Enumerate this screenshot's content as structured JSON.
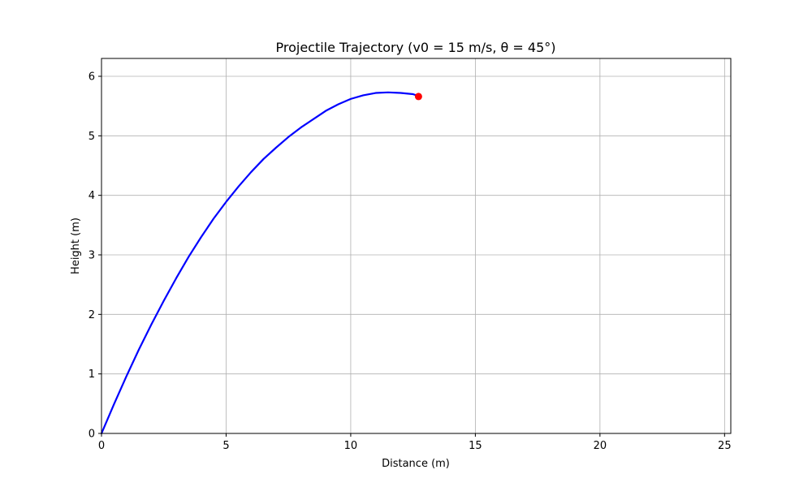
{
  "chart_data": {
    "type": "line",
    "title": "Projectile Trajectory (v0 = 15 m/s, θ = 45°)",
    "xlabel": "Distance (m)",
    "ylabel": "Height (m)",
    "xlim": [
      0,
      25.25
    ],
    "ylim": [
      0,
      6.3
    ],
    "xticks": [
      0,
      5,
      10,
      15,
      20,
      25
    ],
    "yticks": [
      0,
      1,
      2,
      3,
      4,
      5,
      6
    ],
    "grid": true,
    "series": [
      {
        "color": "#0000ff",
        "x": [
          0,
          0.5,
          1,
          1.5,
          2,
          2.5,
          3,
          3.5,
          4,
          4.5,
          5,
          5.5,
          6,
          6.5,
          7,
          7.5,
          8,
          8.5,
          9,
          9.5,
          10,
          10.5,
          11,
          11.5,
          12,
          12.5,
          12.7
        ],
        "y": [
          0,
          0.49,
          0.96,
          1.41,
          1.83,
          2.23,
          2.61,
          2.97,
          3.3,
          3.61,
          3.89,
          4.15,
          4.39,
          4.61,
          4.8,
          4.98,
          5.14,
          5.28,
          5.42,
          5.53,
          5.62,
          5.68,
          5.72,
          5.73,
          5.72,
          5.7,
          5.67
        ]
      }
    ],
    "marker": {
      "x": 12.72,
      "y": 5.66,
      "color": "#ff0000"
    }
  }
}
